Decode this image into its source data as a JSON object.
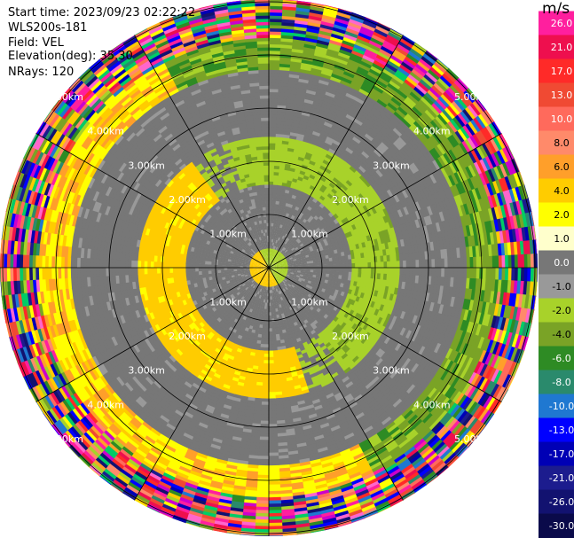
{
  "header": {
    "start_time": "Start time: 2023/09/23 02:22:22",
    "instrument": "WLS200s-181",
    "field": "Field: VEL",
    "elevation": "Elevation(deg): 35.30",
    "nrays": "NRays: 120"
  },
  "chart_data": {
    "type": "heatmap",
    "subtype": "polar PPI",
    "unit": "m/s",
    "range_ring_labels": [
      "1.00km",
      "2.00km",
      "3.00km",
      "4.00km",
      "5.00km"
    ],
    "range_rings_km": [
      1,
      2,
      3,
      4,
      5
    ],
    "max_range_km": 5.0,
    "spoke_angles_deg": [
      0,
      30,
      60,
      90,
      120,
      150,
      180,
      210,
      240,
      270,
      300,
      330
    ],
    "colorbar": {
      "ticks": [
        "26.0",
        "21.0",
        "17.0",
        "13.0",
        "10.0",
        "8.0",
        "6.0",
        "4.0",
        "2.0",
        "1.0",
        "0.0",
        "-1.0",
        "-2.0",
        "-4.0",
        "-6.0",
        "-8.0",
        "-10.0",
        "-13.0",
        "-17.0",
        "-21.0",
        "-26.0",
        "-30.0"
      ],
      "colors": [
        "#ff1f9e",
        "#ee0f4e",
        "#ff2a28",
        "#f04a33",
        "#ff6a5c",
        "#ff8a6a",
        "#ff9f2a",
        "#ffcc00",
        "#ffff00",
        "#ffffcc",
        "#777777",
        "#999999",
        "#a8d22a",
        "#7aa326",
        "#2e8b24",
        "#2a8a6c",
        "#1f78d1",
        "#0000ff",
        "#0000b5",
        "#1c1c8e",
        "#121270",
        "#0a0a4a"
      ]
    },
    "rings": [
      {
        "r_km": [
          0.0,
          0.35
        ],
        "band": "mixed_center"
      },
      {
        "r_km": [
          0.35,
          2.0
        ],
        "band": "gray"
      },
      {
        "r_km": [
          1.6,
          2.4
        ],
        "band": "green_yellow"
      },
      {
        "r_km": [
          2.4,
          3.8
        ],
        "band": "gray"
      },
      {
        "r_km": [
          3.8,
          4.3
        ],
        "band": "yellow_green_outer"
      },
      {
        "r_km": [
          4.3,
          5.3
        ],
        "band": "noise"
      }
    ]
  }
}
